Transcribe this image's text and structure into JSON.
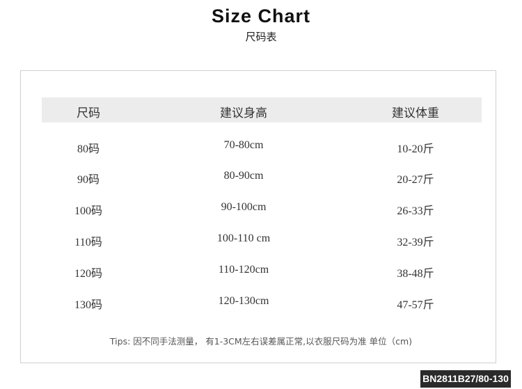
{
  "title": "Size Chart",
  "subtitle": "尺码表",
  "table": {
    "headers": [
      "尺码",
      "建议身高",
      "建议体重"
    ],
    "rows": [
      [
        "80码",
        "70-80cm",
        "10-20斤"
      ],
      [
        "90码",
        "80-90cm",
        "20-27斤"
      ],
      [
        "100码",
        "90-100cm",
        "26-33斤"
      ],
      [
        "110码",
        "100-110 cm",
        "32-39斤"
      ],
      [
        "120码",
        "110-120cm",
        "38-48斤"
      ],
      [
        "130码",
        "120-130cm",
        "47-57斤"
      ]
    ]
  },
  "tips": "Tips: 因不同手法测量，  有1-3CM左右误差属正常,以衣服尺码为准 单位（cm)",
  "product_code": "BN2811B27/80-130"
}
